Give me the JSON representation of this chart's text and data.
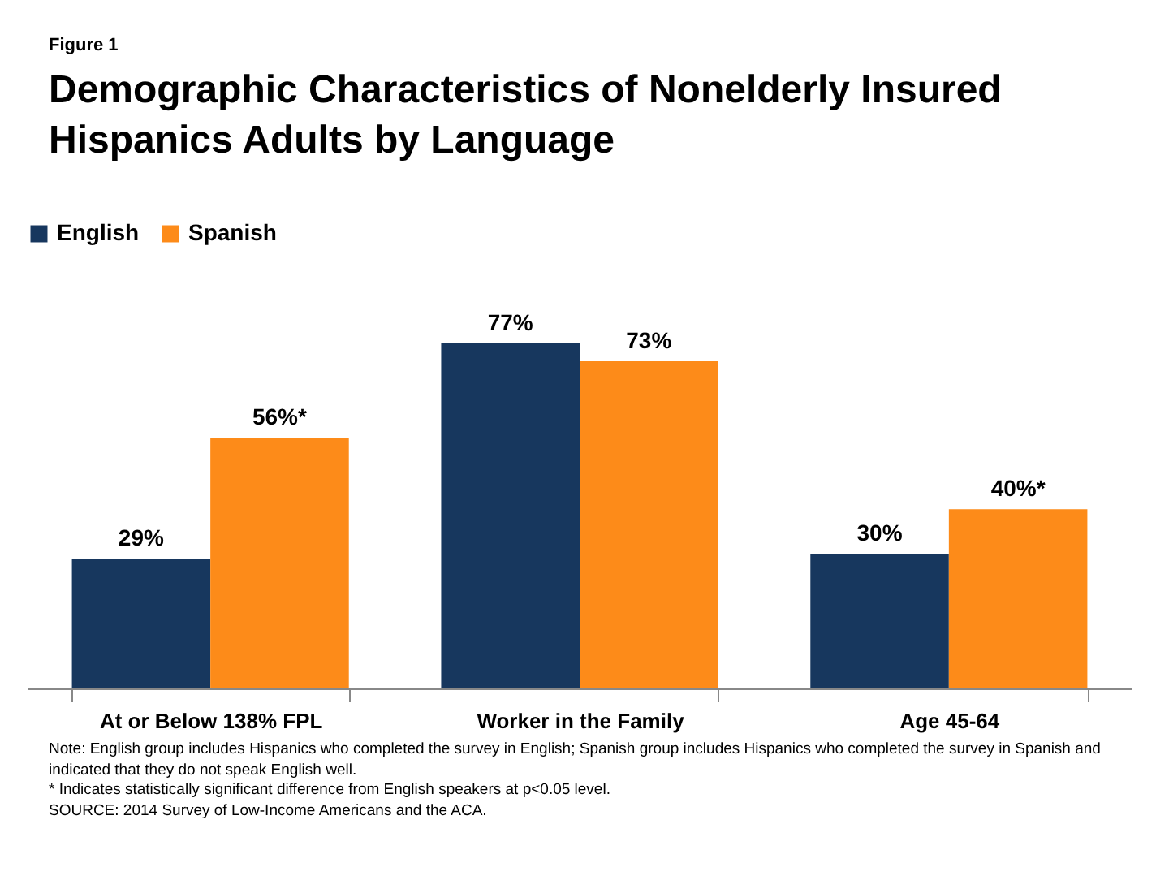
{
  "chart_data": {
    "type": "bar",
    "title": "Demographic Characteristics of Nonelderly Insured Hispanics Adults by Language",
    "categories": [
      "At or Below 138% FPL",
      "Worker in the Family",
      "Age 45-64"
    ],
    "series": [
      {
        "name": "English",
        "color": "#17375e",
        "values": [
          29,
          77,
          30
        ],
        "value_labels": [
          "29%",
          "77%",
          "30%"
        ]
      },
      {
        "name": "Spanish",
        "color": "#fd8b19",
        "values": [
          56,
          73,
          40
        ],
        "value_labels": [
          "56%*",
          "73%",
          "40%*"
        ]
      }
    ],
    "legend": "top",
    "grid": false,
    "annotations": [
      "Figure 1",
      "Note: English group includes Hispanics who completed the survey in English; Spanish group includes Hispanics who completed the survey in Spanish and indicated that they do not speak English well.",
      "* Indicates statistically significant difference from English speakers at p<0.05 level.",
      "SOURCE: 2014 Survey of Low-Income Americans and the ACA."
    ]
  }
}
